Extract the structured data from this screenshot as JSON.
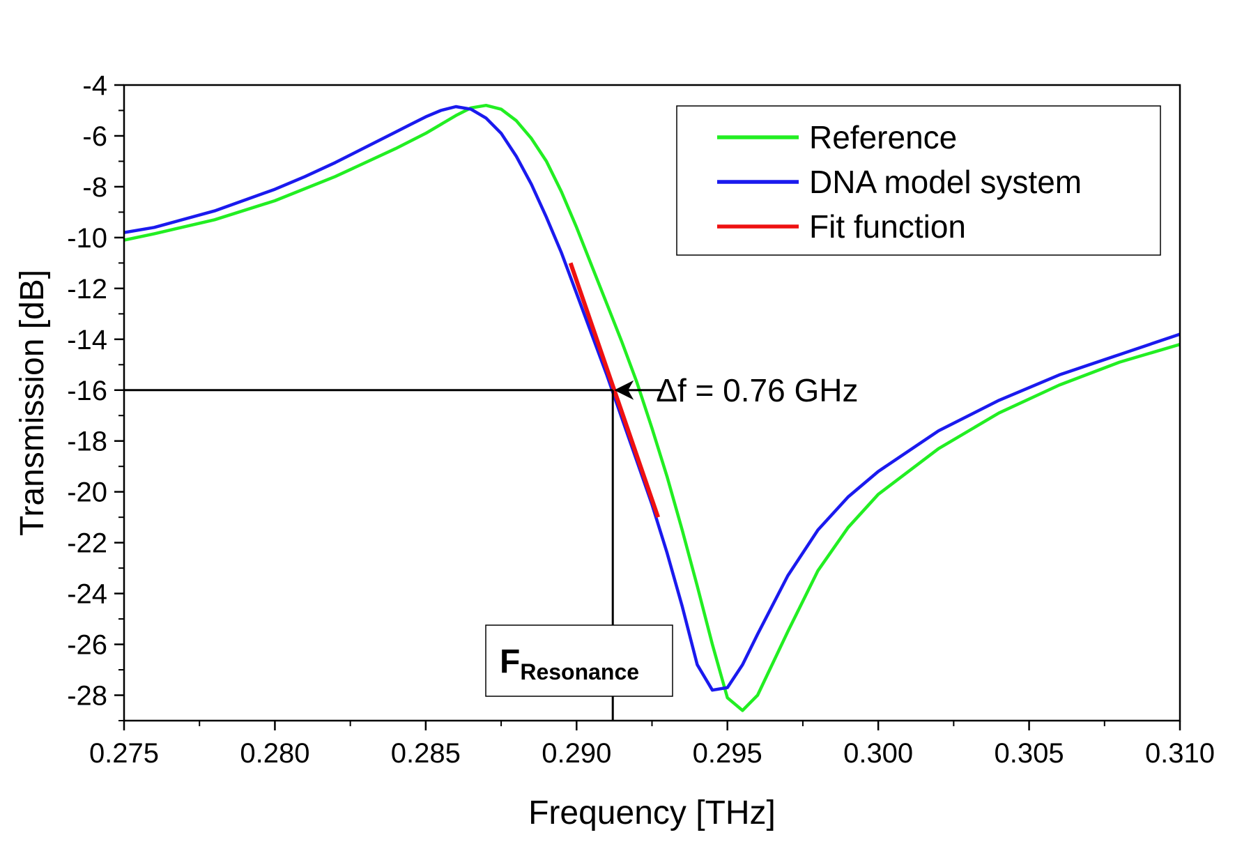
{
  "chart_data": {
    "type": "line",
    "xlabel": "Frequency [THz]",
    "ylabel": "Transmission [dB]",
    "xlim": [
      0.275,
      0.31
    ],
    "ylim": [
      -29,
      -4
    ],
    "x_ticks": [
      0.275,
      0.28,
      0.285,
      0.29,
      0.295,
      0.3,
      0.305,
      0.31
    ],
    "x_tick_labels": [
      "0.275",
      "0.280",
      "0.285",
      "0.290",
      "0.295",
      "0.300",
      "0.305",
      "0.310"
    ],
    "y_ticks": [
      -4,
      -6,
      -8,
      -10,
      -12,
      -14,
      -16,
      -18,
      -20,
      -22,
      -24,
      -26,
      -28
    ],
    "y_tick_labels": [
      "-4",
      "-6",
      "-8",
      "-10",
      "-12",
      "-14",
      "-16",
      "-18",
      "-20",
      "-22",
      "-24",
      "-26",
      "-28"
    ],
    "grid": false,
    "legend_position": "top-right",
    "series": [
      {
        "name": "Reference",
        "color": "#22ee22",
        "points": [
          [
            0.275,
            -10.1
          ],
          [
            0.276,
            -9.85
          ],
          [
            0.278,
            -9.3
          ],
          [
            0.28,
            -8.55
          ],
          [
            0.282,
            -7.6
          ],
          [
            0.284,
            -6.5
          ],
          [
            0.285,
            -5.9
          ],
          [
            0.286,
            -5.2
          ],
          [
            0.2865,
            -4.9
          ],
          [
            0.287,
            -4.8
          ],
          [
            0.2875,
            -4.95
          ],
          [
            0.288,
            -5.4
          ],
          [
            0.2885,
            -6.1
          ],
          [
            0.289,
            -7.0
          ],
          [
            0.2895,
            -8.2
          ],
          [
            0.29,
            -9.6
          ],
          [
            0.2905,
            -11.1
          ],
          [
            0.291,
            -12.6
          ],
          [
            0.2915,
            -14.1
          ],
          [
            0.292,
            -15.7
          ],
          [
            0.2925,
            -17.5
          ],
          [
            0.293,
            -19.4
          ],
          [
            0.2935,
            -21.5
          ],
          [
            0.294,
            -23.7
          ],
          [
            0.2945,
            -26.0
          ],
          [
            0.295,
            -28.1
          ],
          [
            0.2955,
            -28.6
          ],
          [
            0.296,
            -28.0
          ],
          [
            0.297,
            -25.5
          ],
          [
            0.298,
            -23.1
          ],
          [
            0.299,
            -21.4
          ],
          [
            0.3,
            -20.1
          ],
          [
            0.302,
            -18.3
          ],
          [
            0.304,
            -16.9
          ],
          [
            0.306,
            -15.8
          ],
          [
            0.308,
            -14.9
          ],
          [
            0.31,
            -14.2
          ]
        ]
      },
      {
        "name": "DNA model system",
        "color": "#1a1aee",
        "points": [
          [
            0.275,
            -9.8
          ],
          [
            0.276,
            -9.6
          ],
          [
            0.278,
            -8.95
          ],
          [
            0.28,
            -8.1
          ],
          [
            0.281,
            -7.6
          ],
          [
            0.282,
            -7.05
          ],
          [
            0.283,
            -6.45
          ],
          [
            0.284,
            -5.85
          ],
          [
            0.2845,
            -5.55
          ],
          [
            0.285,
            -5.25
          ],
          [
            0.2855,
            -5.0
          ],
          [
            0.286,
            -4.85
          ],
          [
            0.2865,
            -4.95
          ],
          [
            0.287,
            -5.3
          ],
          [
            0.2875,
            -5.9
          ],
          [
            0.288,
            -6.8
          ],
          [
            0.2885,
            -7.9
          ],
          [
            0.289,
            -9.2
          ],
          [
            0.2895,
            -10.6
          ],
          [
            0.29,
            -12.2
          ],
          [
            0.2905,
            -13.8
          ],
          [
            0.291,
            -15.4
          ],
          [
            0.2915,
            -17.1
          ],
          [
            0.292,
            -18.8
          ],
          [
            0.2925,
            -20.5
          ],
          [
            0.293,
            -22.4
          ],
          [
            0.2935,
            -24.5
          ],
          [
            0.294,
            -26.8
          ],
          [
            0.2945,
            -27.8
          ],
          [
            0.295,
            -27.7
          ],
          [
            0.2955,
            -26.8
          ],
          [
            0.296,
            -25.6
          ],
          [
            0.297,
            -23.3
          ],
          [
            0.298,
            -21.5
          ],
          [
            0.299,
            -20.2
          ],
          [
            0.3,
            -19.2
          ],
          [
            0.302,
            -17.6
          ],
          [
            0.304,
            -16.4
          ],
          [
            0.306,
            -15.4
          ],
          [
            0.308,
            -14.6
          ],
          [
            0.31,
            -13.8
          ]
        ]
      },
      {
        "name": "Fit function",
        "color": "#ee1111",
        "points": [
          [
            0.2898,
            -11.0
          ],
          [
            0.2927,
            -21.0
          ]
        ]
      }
    ],
    "annotations": {
      "delta_label": "Δf = 0.76 GHz",
      "resonance_label_main": "F",
      "resonance_label_sub": "Resonance",
      "guide_y": -16,
      "guide_x": 0.2912
    }
  }
}
